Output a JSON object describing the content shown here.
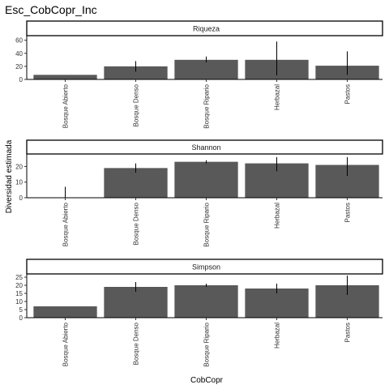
{
  "title": "Esc_CobCopr_Inc",
  "colors": {
    "bar": "#595959",
    "axis": "#000000",
    "strip_fill": "#ffffff"
  },
  "chart_data": {
    "type": "bar",
    "title": "Esc_CobCopr_Inc",
    "xlabel": "CobCopr",
    "ylabel": "Diversidad estimada",
    "grid": false,
    "categories": [
      "Bosque Abierto",
      "Bosque Denso",
      "Bosque Ripario",
      "Herbazal",
      "Pastos"
    ],
    "panels": [
      {
        "name": "Riqueza",
        "values": [
          7,
          20,
          30,
          30,
          21
        ],
        "error_low": [
          7,
          12,
          26,
          6,
          7
        ],
        "error_high": [
          7,
          28,
          35,
          58,
          43
        ],
        "ylim": [
          0,
          67
        ],
        "yticks": [
          0,
          20,
          40,
          60
        ]
      },
      {
        "name": "Shannon",
        "values": [
          0,
          19,
          23,
          22,
          21
        ],
        "error_low": [
          0,
          16,
          22,
          17,
          14
        ],
        "error_high": [
          7,
          22,
          24,
          26,
          26
        ],
        "ylim": [
          0,
          28
        ],
        "yticks": [
          0,
          10,
          20
        ]
      },
      {
        "name": "Simpson",
        "values": [
          7,
          19,
          20,
          18,
          20
        ],
        "error_low": [
          7,
          16,
          19,
          15,
          14
        ],
        "error_high": [
          7,
          22,
          21,
          21,
          26
        ],
        "ylim": [
          0,
          27
        ],
        "yticks": [
          0,
          5,
          10,
          15,
          20,
          25
        ]
      }
    ]
  }
}
